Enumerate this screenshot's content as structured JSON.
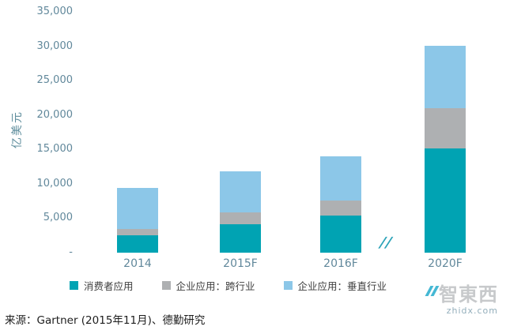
{
  "chart_data": {
    "type": "bar",
    "stacked": true,
    "title": "",
    "ylabel": "亿美元",
    "categories": [
      "2014",
      "2015F",
      "2016F",
      "2020F"
    ],
    "series": [
      {
        "name": "消费者应用",
        "color": "#00a3b3",
        "values": [
          2500,
          4100,
          5400,
          15200
        ]
      },
      {
        "name": "企业应用：跨行业",
        "color": "#aeb0b2",
        "values": [
          900,
          1800,
          2200,
          5800
        ]
      },
      {
        "name": "企业应用：垂直行业",
        "color": "#8cc7e8",
        "values": [
          6000,
          5900,
          6400,
          9100
        ]
      }
    ],
    "totals": [
      9400,
      11800,
      14000,
      30100
    ],
    "ylim": [
      0,
      35000
    ],
    "ytick_values": [
      35000,
      30000,
      25000,
      20000,
      15000,
      10000,
      5000,
      0
    ],
    "ytick_labels": [
      "35,000",
      "30,000",
      "25,000",
      "20,000",
      "15,000",
      "10,000",
      "5,000",
      "-"
    ],
    "axis_break": "//",
    "legend_position": "bottom",
    "grid": false
  },
  "source": "来源：Gartner (2015年11月)、德勤研究",
  "watermark": {
    "logo": "智東西",
    "url": "zhidx.com"
  }
}
